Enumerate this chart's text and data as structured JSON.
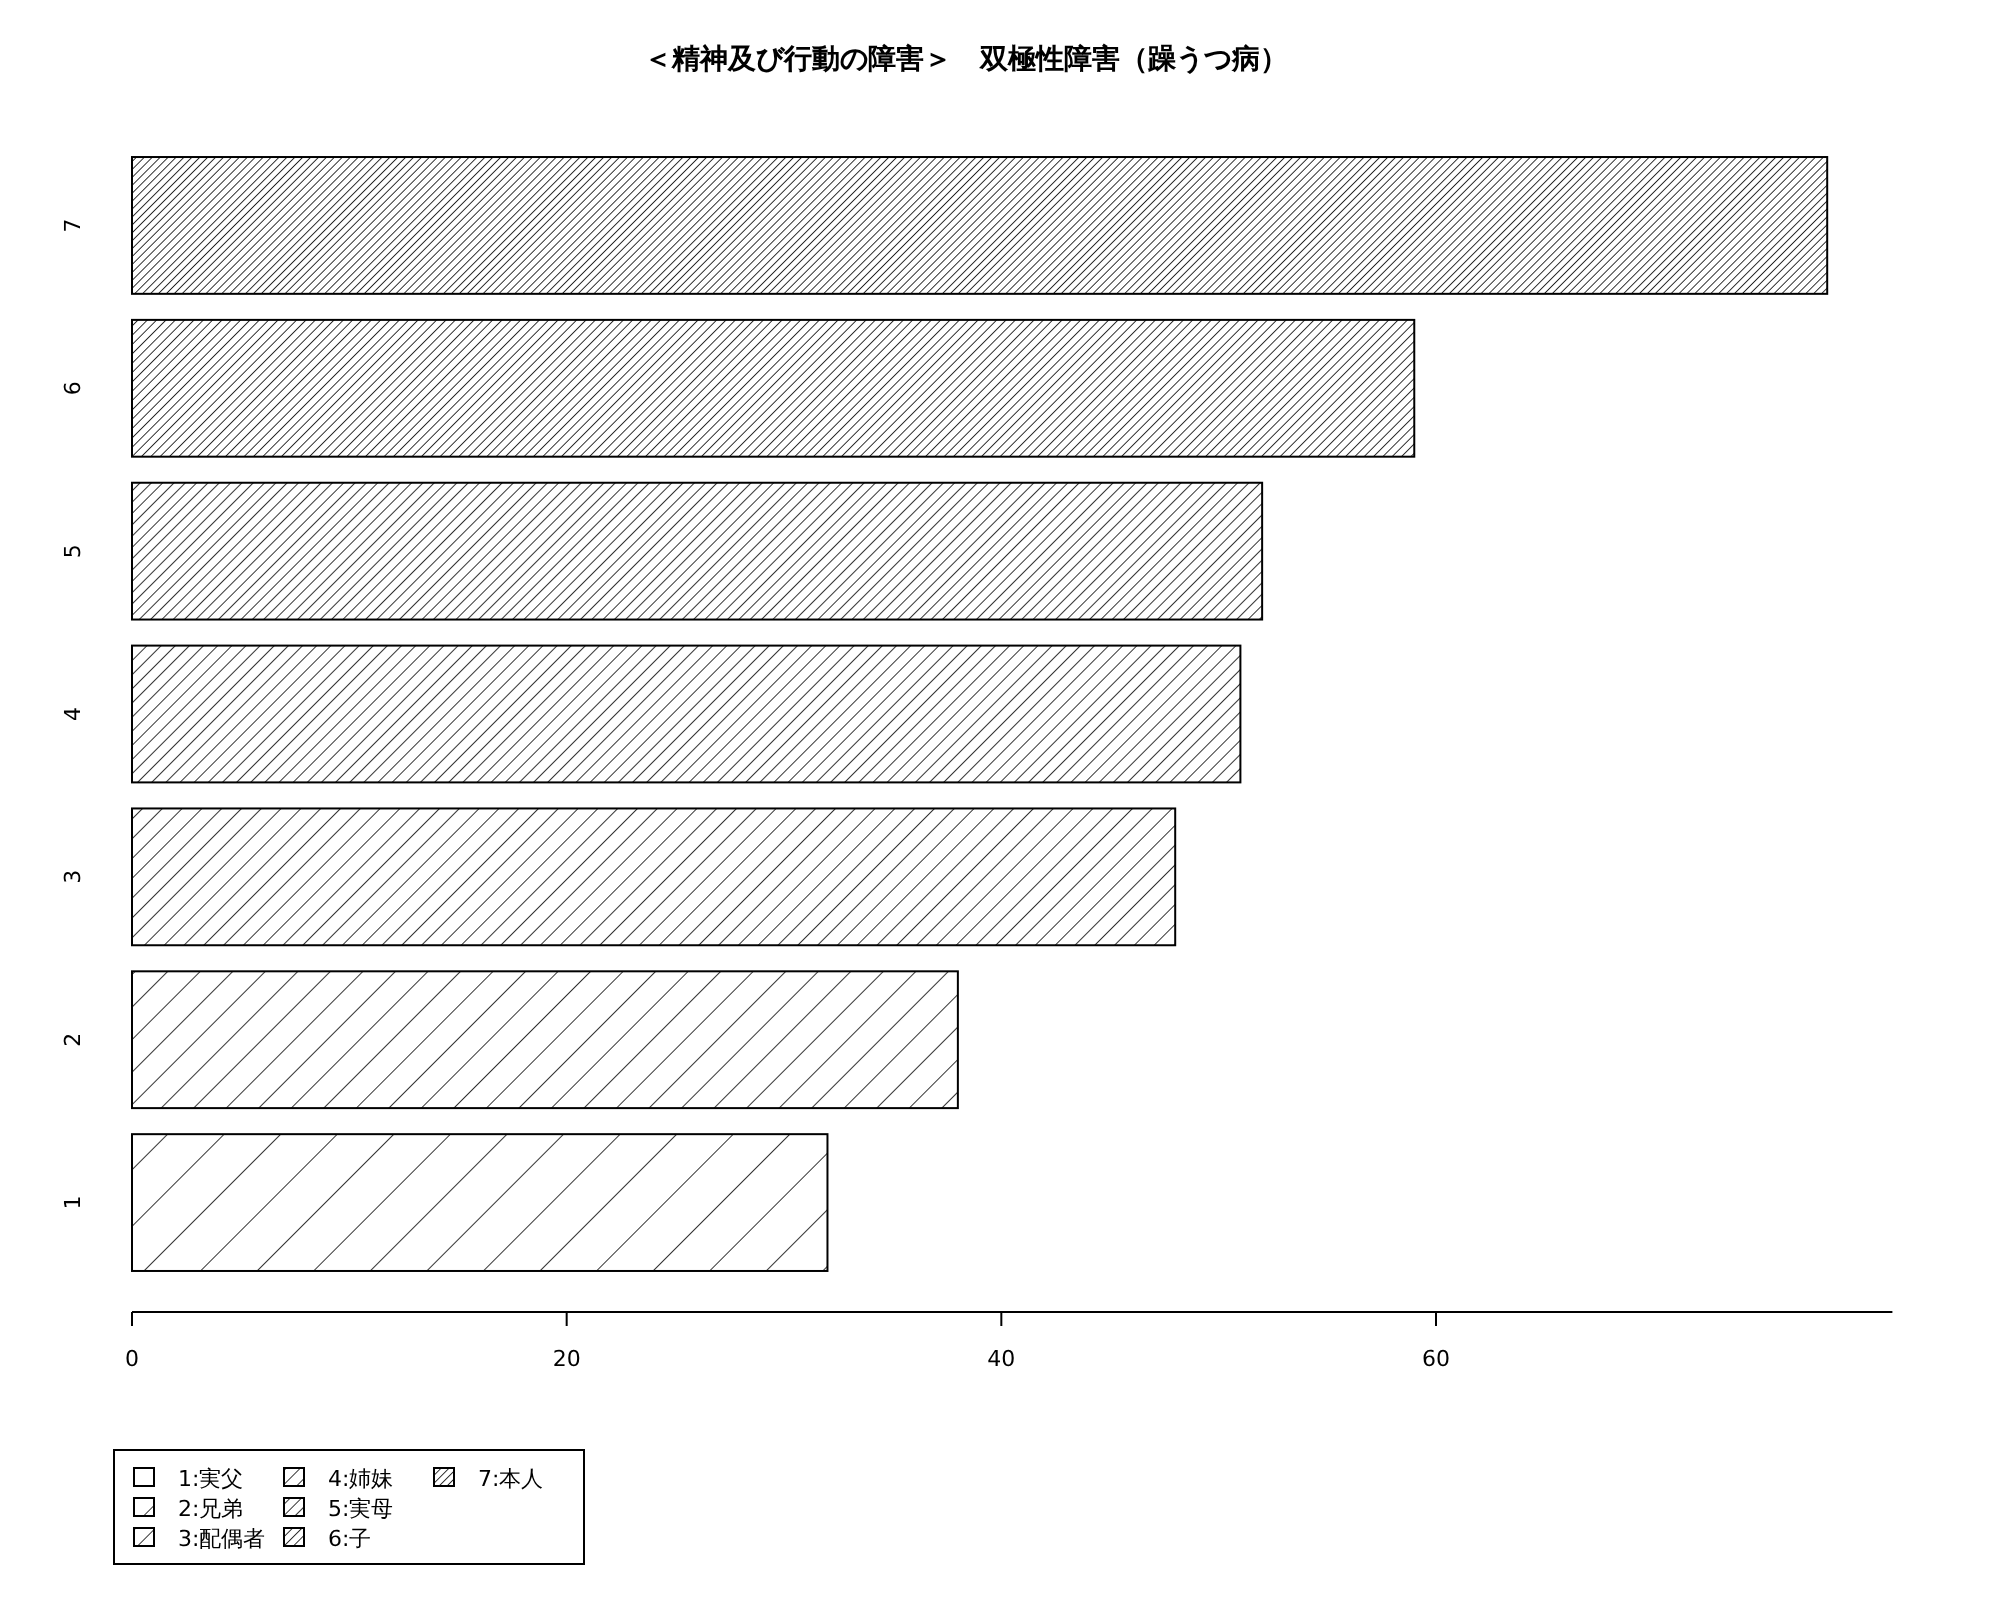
{
  "chart_data": {
    "type": "bar",
    "title": "＜精神及び行動の障害＞　双極性障害（躁うつ病）",
    "orientation": "horizontal",
    "stacked": true,
    "categories": [
      "7",
      "6",
      "5",
      "4",
      "3",
      "2",
      "1"
    ],
    "series": [
      {
        "name": "1:実父",
        "color": "#000000",
        "values": [
          null,
          null,
          null,
          null,
          null,
          null,
          32
        ]
      },
      {
        "name": "2:兄弟",
        "color": "#000000",
        "values": [
          null,
          null,
          null,
          null,
          null,
          38,
          null
        ]
      },
      {
        "name": "3:配偶者",
        "color": "#000000",
        "values": [
          null,
          null,
          null,
          null,
          48,
          null,
          null
        ]
      },
      {
        "name": "4:姉妹",
        "color": "#000000",
        "values": [
          null,
          null,
          null,
          51,
          null,
          null,
          null
        ]
      },
      {
        "name": "5:実母",
        "color": "#000000",
        "values": [
          null,
          null,
          52,
          null,
          null,
          null,
          null
        ]
      },
      {
        "name": "6:子",
        "color": "#000000",
        "values": [
          null,
          59,
          null,
          null,
          null,
          null,
          null
        ]
      },
      {
        "name": "7:本人",
        "color": "#000000",
        "values": [
          78,
          null,
          null,
          null,
          null,
          null,
          null
        ]
      }
    ],
    "xlim": [
      0,
      81
    ],
    "xticks": [
      0,
      20,
      40,
      60
    ],
    "legend": "bottom left"
  }
}
